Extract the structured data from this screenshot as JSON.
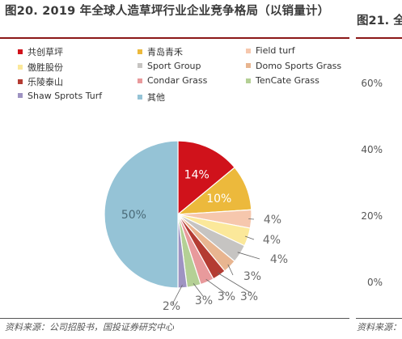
{
  "figure": {
    "title": "图20. 2019 年全球人造草坪行业企业竞争格局（以销量计）",
    "source": "资料来源：公司招股书，国投证券研究中心"
  },
  "right_figure": {
    "title": "图21. 全",
    "source": "资料来源：",
    "ticks": [
      "60%",
      "40%",
      "20%",
      "0%"
    ]
  },
  "chart_data": {
    "type": "pie",
    "title": "",
    "slices": [
      {
        "label": "共创草坪",
        "value": 14,
        "color": "#d0121b",
        "text": "14%"
      },
      {
        "label": "青岛青禾",
        "value": 10,
        "color": "#ecb93c",
        "text": "10%"
      },
      {
        "label": "Field turf",
        "value": 4,
        "color": "#f6c7ad",
        "text": "4%"
      },
      {
        "label": "傲胜股份",
        "value": 4,
        "color": "#fbe89a",
        "text": "4%"
      },
      {
        "label": "Sport Group",
        "value": 4,
        "color": "#c6c4c2",
        "text": "4%"
      },
      {
        "label": "Domo Sports Grass",
        "value": 3,
        "color": "#e8b590",
        "text": "3%"
      },
      {
        "label": "乐陵泰山",
        "value": 3,
        "color": "#b43c33",
        "text": "3%"
      },
      {
        "label": "Condar Grass",
        "value": 3,
        "color": "#e89a9c",
        "text": "3%"
      },
      {
        "label": "TenCate Grass",
        "value": 3,
        "color": "#b4d095",
        "text": "3%"
      },
      {
        "label": "Shaw Sprots Turf",
        "value": 2,
        "color": "#9e93c2",
        "text": "2%"
      },
      {
        "label": "其他",
        "value": 50,
        "color": "#95c3d6",
        "text": "50%"
      }
    ]
  }
}
